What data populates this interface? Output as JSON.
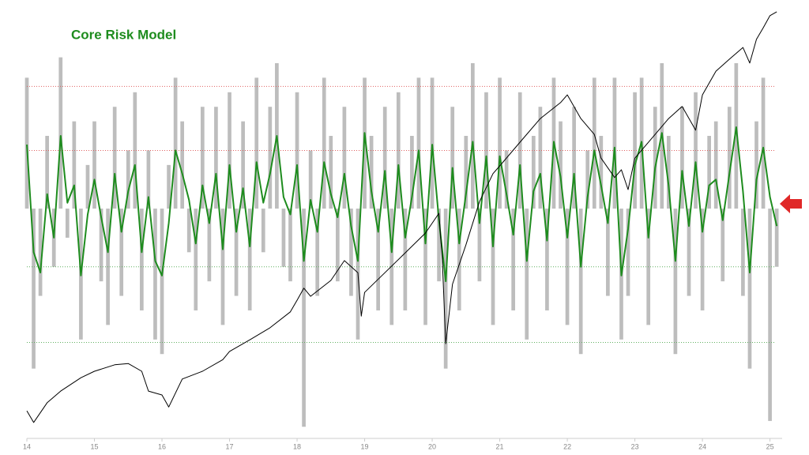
{
  "chart_data": {
    "type": "line",
    "title": "Core Risk Model",
    "xlim": [
      14,
      25.18
    ],
    "xticks": [
      14,
      15,
      16,
      17,
      18,
      19,
      20,
      21,
      22,
      23,
      24,
      25
    ],
    "ylim": [
      -7.9,
      6.9
    ],
    "y2lim": [
      0,
      100
    ],
    "reference_lines": [
      {
        "value": 4.2,
        "color": "#e06060"
      },
      {
        "value": 2,
        "color": "#e06060"
      },
      {
        "value": -2,
        "color": "#60b060"
      },
      {
        "value": -4.6,
        "color": "#60b060"
      }
    ],
    "x": [
      14.0,
      14.1,
      14.2,
      14.3,
      14.4,
      14.5,
      14.6,
      14.7,
      14.8,
      14.9,
      15.0,
      15.1,
      15.2,
      15.3,
      15.4,
      15.5,
      15.6,
      15.7,
      15.8,
      15.9,
      16.0,
      16.1,
      16.2,
      16.3,
      16.4,
      16.5,
      16.6,
      16.7,
      16.8,
      16.9,
      17.0,
      17.1,
      17.2,
      17.3,
      17.4,
      17.5,
      17.6,
      17.7,
      17.8,
      17.9,
      18.0,
      18.1,
      18.2,
      18.3,
      18.4,
      18.5,
      18.6,
      18.7,
      18.8,
      18.9,
      19.0,
      19.1,
      19.2,
      19.3,
      19.4,
      19.5,
      19.6,
      19.7,
      19.8,
      19.9,
      20.0,
      20.1,
      20.2,
      20.3,
      20.4,
      20.5,
      20.6,
      20.7,
      20.8,
      20.9,
      21.0,
      21.1,
      21.2,
      21.3,
      21.4,
      21.5,
      21.6,
      21.7,
      21.8,
      21.9,
      22.0,
      22.1,
      22.2,
      22.3,
      22.4,
      22.5,
      22.6,
      22.7,
      22.8,
      22.9,
      23.0,
      23.1,
      23.2,
      23.3,
      23.4,
      23.5,
      23.6,
      23.7,
      23.8,
      23.9,
      24.0,
      24.1,
      24.2,
      24.3,
      24.4,
      24.5,
      24.6,
      24.7,
      24.8,
      24.9,
      25.0,
      25.1
    ],
    "series": [
      {
        "style": "bar",
        "color": "#bdbdbd",
        "values": [
          4.5,
          -5.5,
          -3.0,
          2.5,
          -2.0,
          5.2,
          -1.0,
          3.0,
          -4.5,
          1.5,
          3.0,
          -2.5,
          -4.0,
          3.5,
          -3.0,
          2.0,
          4.0,
          -3.5,
          2.0,
          -4.5,
          -5.0,
          1.5,
          4.5,
          3.0,
          -1.5,
          -3.5,
          3.5,
          -2.5,
          3.5,
          -4.0,
          4.0,
          -3.0,
          3.0,
          -3.5,
          4.5,
          -1.5,
          3.5,
          5.0,
          -2.0,
          -2.5,
          4.0,
          -7.5,
          2.0,
          -3.0,
          4.5,
          2.5,
          -2.5,
          3.5,
          -3.0,
          -4.5,
          4.5,
          2.5,
          -3.5,
          3.5,
          -4.0,
          4.0,
          -3.5,
          2.5,
          4.5,
          -4.0,
          4.5,
          -2.5,
          -5.5,
          3.5,
          -3.5,
          2.5,
          5.0,
          -2.5,
          4.0,
          -4.0,
          4.5,
          2.0,
          -3.5,
          4.0,
          -4.5,
          2.5,
          3.5,
          -3.5,
          4.5,
          3.0,
          -4.0,
          3.5,
          -5.0,
          2.0,
          4.5,
          2.5,
          -3.0,
          4.5,
          -4.5,
          -3.0,
          4.0,
          4.5,
          -4.0,
          3.5,
          5.0,
          2.5,
          -5.0,
          3.5,
          -3.0,
          4.0,
          -3.5,
          2.5,
          3.0,
          -2.5,
          3.5,
          5.0,
          -3.0,
          -5.5,
          3.0,
          4.5,
          -7.3,
          -2.0
        ]
      },
      {
        "style": "line",
        "color": "#1e8c1e",
        "values": [
          2.2,
          -1.5,
          -2.2,
          0.5,
          -1.0,
          2.5,
          0.2,
          0.8,
          -2.3,
          -0.2,
          1.0,
          -0.3,
          -1.5,
          1.2,
          -0.8,
          0.6,
          1.5,
          -1.5,
          0.4,
          -1.8,
          -2.3,
          -0.5,
          2.0,
          1.2,
          0.3,
          -1.2,
          0.8,
          -0.5,
          1.2,
          -1.4,
          1.5,
          -0.8,
          0.7,
          -1.3,
          1.6,
          0.2,
          1.2,
          2.5,
          0.4,
          -0.2,
          1.5,
          -1.8,
          0.3,
          -0.8,
          1.6,
          0.5,
          -0.3,
          1.2,
          -0.6,
          -1.8,
          2.6,
          0.6,
          -0.8,
          1.3,
          -1.5,
          1.5,
          -1.0,
          0.4,
          2.0,
          -1.2,
          2.2,
          -0.4,
          -2.5,
          1.4,
          -1.2,
          0.5,
          2.3,
          -0.5,
          1.8,
          -1.3,
          1.8,
          0.5,
          -0.9,
          1.5,
          -1.8,
          0.6,
          1.2,
          -1.1,
          2.3,
          1.1,
          -1.0,
          1.2,
          -2.0,
          0.4,
          2.0,
          0.8,
          -0.5,
          2.1,
          -2.3,
          -0.7,
          1.5,
          2.3,
          -1.0,
          1.4,
          2.6,
          0.8,
          -1.8,
          1.3,
          -0.6,
          1.6,
          -0.8,
          0.8,
          1.0,
          -0.4,
          1.2,
          2.8,
          0.6,
          -2.2,
          1.0,
          2.1,
          0.4,
          -0.6
        ]
      },
      {
        "style": "line",
        "color": "#000000",
        "axis": "y2",
        "x": [
          14.0,
          14.1,
          14.3,
          14.5,
          14.8,
          15.0,
          15.3,
          15.5,
          15.7,
          15.8,
          16.0,
          16.1,
          16.3,
          16.6,
          16.9,
          17.0,
          17.3,
          17.6,
          17.9,
          18.0,
          18.1,
          18.2,
          18.5,
          18.7,
          18.9,
          18.95,
          19.0,
          19.3,
          19.6,
          19.9,
          20.1,
          20.15,
          20.2,
          20.3,
          20.5,
          20.7,
          20.9,
          21.0,
          21.3,
          21.6,
          21.9,
          22.0,
          22.2,
          22.4,
          22.5,
          22.7,
          22.8,
          22.9,
          23.0,
          23.3,
          23.5,
          23.7,
          23.9,
          24.0,
          24.2,
          24.4,
          24.6,
          24.7,
          24.8,
          24.9,
          25.0,
          25.1
        ],
        "values": [
          6.4,
          3.7,
          8.3,
          11.0,
          14.1,
          15.6,
          17.1,
          17.4,
          15.6,
          11.0,
          10.1,
          7.3,
          13.8,
          15.6,
          18.3,
          20.2,
          22.9,
          25.7,
          29.4,
          32.1,
          34.9,
          33.0,
          36.7,
          41.3,
          38.5,
          28.4,
          33.9,
          38.5,
          43.1,
          47.7,
          52.3,
          41.3,
          22.0,
          35.8,
          45.0,
          55.0,
          61.5,
          63.3,
          68.8,
          74.3,
          78.0,
          79.8,
          74.3,
          70.6,
          65.1,
          60.6,
          62.4,
          57.8,
          65.1,
          70.6,
          74.3,
          77.1,
          71.6,
          79.8,
          85.3,
          88.1,
          90.8,
          87.2,
          92.7,
          95.4,
          98.2,
          99.1
        ]
      }
    ]
  }
}
